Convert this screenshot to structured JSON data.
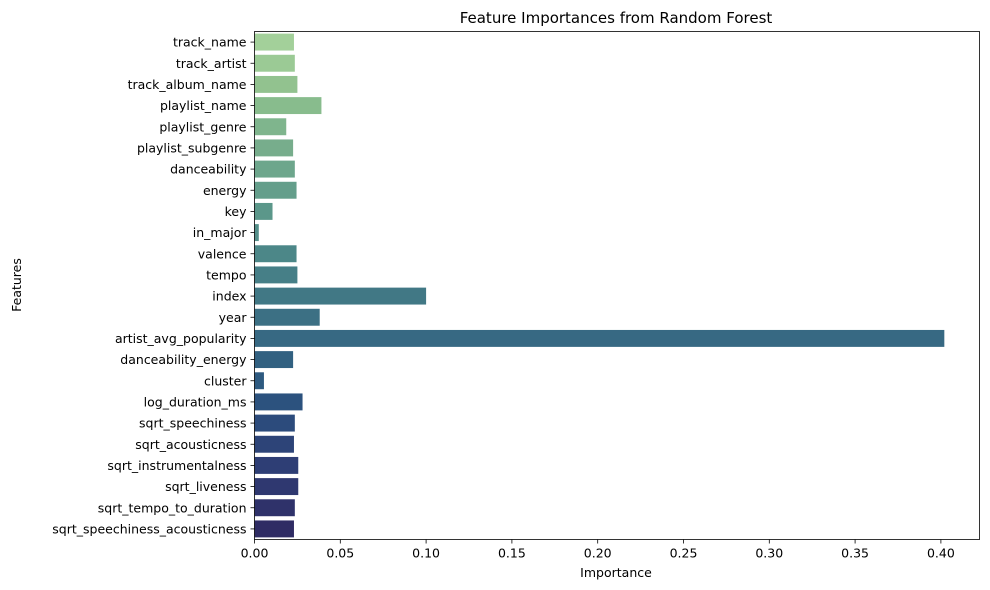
{
  "chart_data": {
    "type": "bar",
    "orientation": "horizontal",
    "title": "Feature Importances from Random Forest",
    "xlabel": "Importance",
    "ylabel": "Features",
    "xlim": [
      0,
      0.4225
    ],
    "xticks": [
      "0.00",
      "0.05",
      "0.10",
      "0.15",
      "0.20",
      "0.25",
      "0.30",
      "0.35",
      "0.40"
    ],
    "grid": false,
    "palette": "crest",
    "colors": [
      "#a3d09a",
      "#9bca95",
      "#92c28f",
      "#88bc8d",
      "#7fb58d",
      "#77ad8c",
      "#6da68c",
      "#649e8b",
      "#5b978a",
      "#538e89",
      "#4c8788",
      "#467f87",
      "#417885",
      "#3c7084",
      "#376983",
      "#326181",
      "#2e5a80",
      "#2c527e",
      "#2c4b7c",
      "#2d4478",
      "#2e3e75",
      "#2f3870",
      "#2f326a",
      "#2f2c64"
    ],
    "categories": [
      "track_name",
      "track_artist",
      "track_album_name",
      "playlist_name",
      "playlist_genre",
      "playlist_subgenre",
      "danceability",
      "energy",
      "key",
      "in_major",
      "valence",
      "tempo",
      "index",
      "year",
      "artist_avg_popularity",
      "danceability_energy",
      "cluster",
      "log_duration_ms",
      "sqrt_speechiness",
      "sqrt_acousticness",
      "sqrt_instrumentalness",
      "sqrt_liveness",
      "sqrt_tempo_to_duration",
      "sqrt_speechiness_acousticness"
    ],
    "values": [
      0.023,
      0.0235,
      0.025,
      0.039,
      0.0185,
      0.0225,
      0.0235,
      0.0245,
      0.0105,
      0.0025,
      0.0245,
      0.025,
      0.1,
      0.038,
      0.402,
      0.0225,
      0.0055,
      0.028,
      0.0235,
      0.023,
      0.0255,
      0.0255,
      0.0235,
      0.023
    ]
  }
}
